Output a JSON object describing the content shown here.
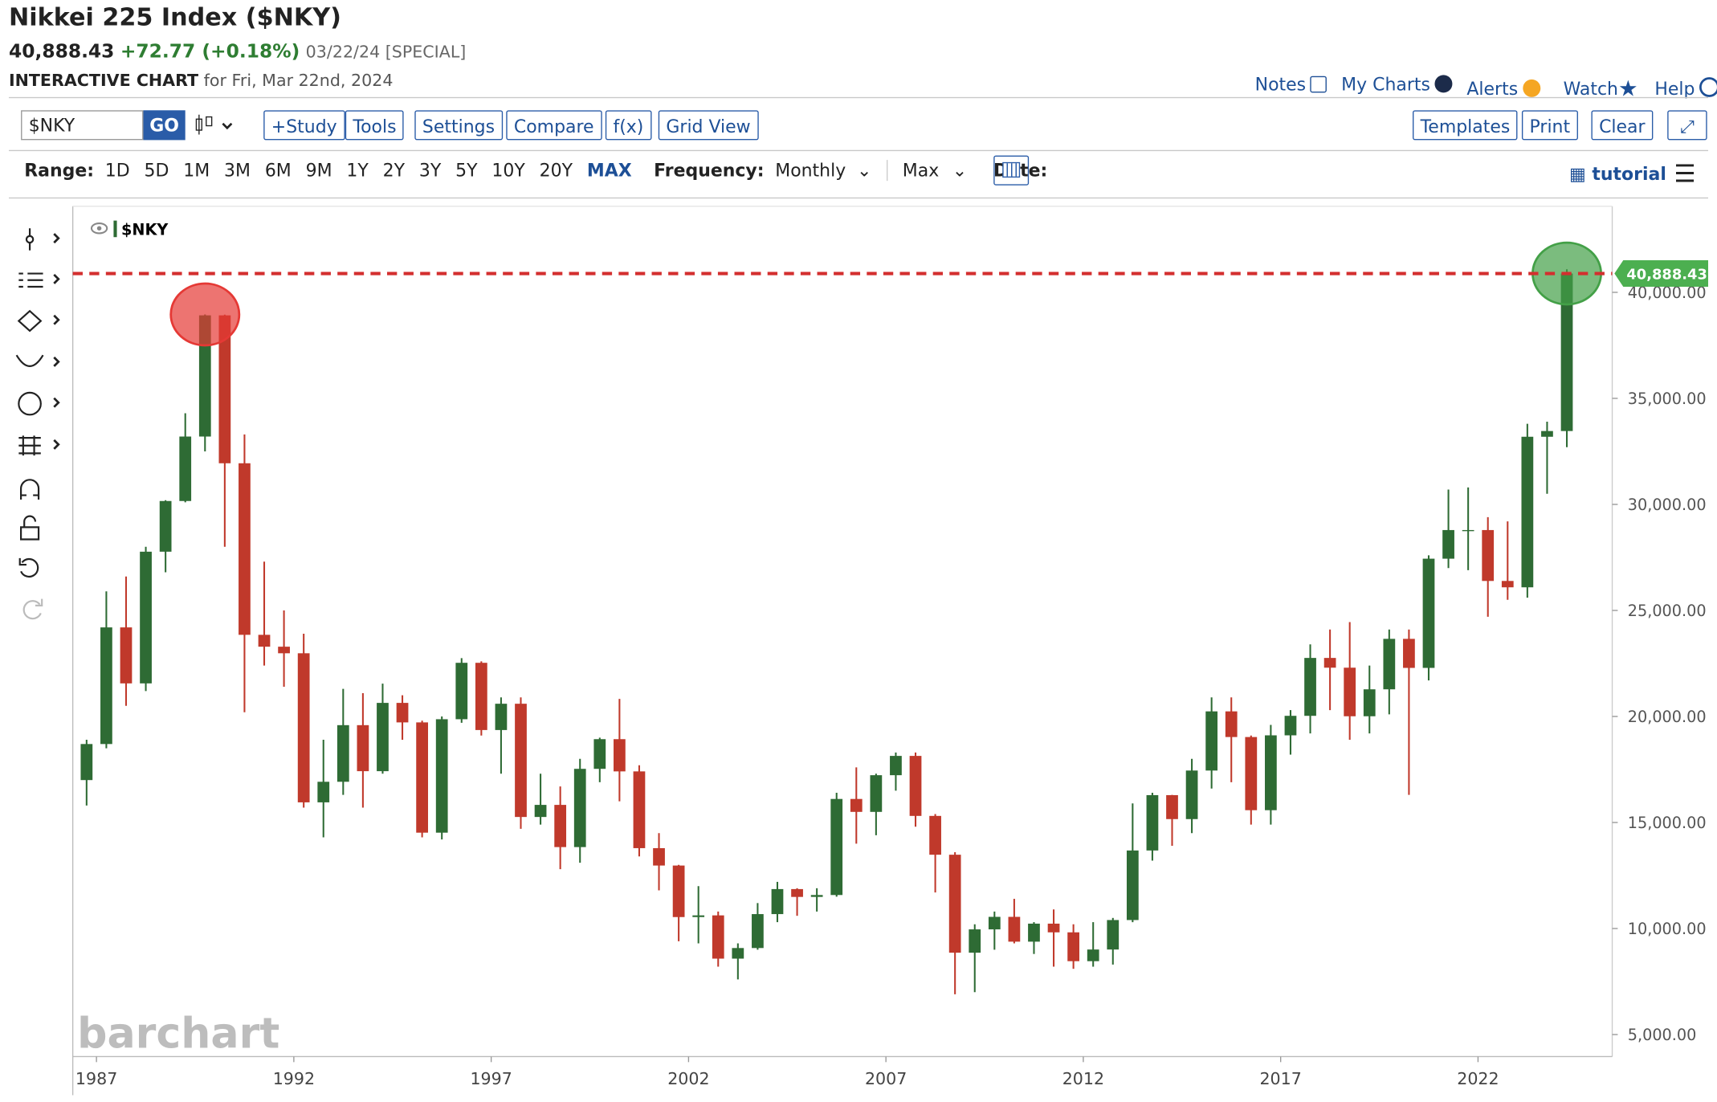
{
  "header": {
    "title": "Nikkei 225 Index ($NKY)",
    "last": "40,888.43",
    "change": "+72.77 (+0.18%)",
    "date_note": "03/22/24 [SPECIAL]",
    "chart_label": "INTERACTIVE CHART",
    "chart_date": "for Fri, Mar 22nd, 2024",
    "links": [
      "Notes",
      "My Charts",
      "Alerts",
      "Watch",
      "Help"
    ]
  },
  "toolbar": {
    "symbol": "$NKY",
    "go": "GO",
    "buttons_left": [
      "+Study",
      "Tools",
      "Settings",
      "Compare",
      "f(x)",
      "Grid View"
    ],
    "buttons_right": [
      "Templates",
      "Print",
      "Clear"
    ]
  },
  "range_bar": {
    "range_label": "Range:",
    "ranges": [
      "1D",
      "5D",
      "1M",
      "3M",
      "6M",
      "9M",
      "1Y",
      "2Y",
      "3Y",
      "5Y",
      "10Y",
      "20Y",
      "MAX"
    ],
    "active_range_index": 12,
    "frequency_label": "Frequency:",
    "frequency": "Monthly",
    "period": "Max",
    "date_label": "Date:",
    "tutorial": "tutorial"
  },
  "chart_data": {
    "type": "candlestick",
    "watermark": "barchart",
    "series": [
      {
        "name": "$NKY",
        "up_color": "#2e6b34",
        "down_color": "#c0392b",
        "x": [
          1986.75,
          1987.25,
          1987.75,
          1988.25,
          1988.75,
          1989.25,
          1989.75,
          1990.25,
          1990.75,
          1991.25,
          1991.75,
          1992.25,
          1992.75,
          1993.25,
          1993.75,
          1994.25,
          1994.75,
          1995.25,
          1995.75,
          1996.25,
          1996.75,
          1997.25,
          1997.75,
          1998.25,
          1998.75,
          1999.25,
          1999.75,
          2000.25,
          2000.75,
          2001.25,
          2001.75,
          2002.25,
          2002.75,
          2003.25,
          2003.75,
          2004.25,
          2004.75,
          2005.25,
          2005.75,
          2006.25,
          2006.75,
          2007.25,
          2007.75,
          2008.25,
          2008.75,
          2009.25,
          2009.75,
          2010.25,
          2010.75,
          2011.25,
          2011.75,
          2012.25,
          2012.75,
          2013.25,
          2013.75,
          2014.25,
          2014.75,
          2015.25,
          2015.75,
          2016.25,
          2016.75,
          2017.25,
          2017.75,
          2018.25,
          2018.75,
          2019.25,
          2019.75,
          2020.25,
          2020.75,
          2021.25,
          2021.75,
          2022.25,
          2022.75,
          2023.25,
          2023.75,
          2024.25
        ],
        "open": [
          17000,
          18700,
          24200,
          21560,
          27770,
          30160,
          33200,
          38915,
          31940,
          23850,
          23290,
          22980,
          15950,
          16920,
          19590,
          17420,
          20640,
          19720,
          14520,
          19870,
          22530,
          19360,
          20600,
          15260,
          15830,
          13840,
          17530,
          18930,
          17410,
          13790,
          12970,
          10540,
          10620,
          8580,
          9080,
          10680,
          11860,
          11490,
          11580,
          16110,
          15500,
          17230,
          18140,
          15310,
          13480,
          8860,
          9960,
          10550,
          9380,
          10230,
          9820,
          8460,
          9010,
          10400,
          13680,
          16290,
          15160,
          17450,
          20240,
          19030,
          15580,
          19110,
          20030,
          22760,
          22300,
          20010,
          21280,
          23660,
          22290,
          27440,
          28790,
          28790,
          26390,
          26090,
          33190,
          33460
        ],
        "high": [
          18900,
          25900,
          26600,
          28000,
          30200,
          34300,
          38957,
          38950,
          33300,
          27300,
          25000,
          23900,
          18900,
          21300,
          21100,
          21550,
          21000,
          19800,
          20000,
          22750,
          22600,
          20900,
          20900,
          17300,
          16700,
          18000,
          19000,
          20830,
          17700,
          14500,
          13000,
          12000,
          10800,
          9300,
          11200,
          12200,
          11900,
          11900,
          16400,
          17600,
          17300,
          18300,
          18300,
          15400,
          13600,
          10200,
          10800,
          11400,
          10300,
          10900,
          10200,
          10300,
          10500,
          15900,
          16400,
          16300,
          18000,
          20900,
          20900,
          19100,
          19600,
          20300,
          23400,
          24100,
          24450,
          22400,
          24100,
          24100,
          27600,
          30700,
          30800,
          29400,
          29200,
          33800,
          33900,
          41087
        ],
        "low": [
          15800,
          18500,
          20500,
          21200,
          26800,
          30100,
          32500,
          28000,
          20200,
          22400,
          21400,
          15700,
          14300,
          16300,
          15700,
          17300,
          18900,
          14300,
          14200,
          19700,
          19100,
          17300,
          14700,
          14900,
          12800,
          13100,
          16900,
          16000,
          13400,
          11800,
          9400,
          9300,
          8200,
          7600,
          9000,
          10300,
          10600,
          10800,
          11500,
          14000,
          14400,
          16500,
          14800,
          11700,
          6900,
          7000,
          9000,
          9300,
          8800,
          8200,
          8100,
          8200,
          8300,
          10300,
          13200,
          13900,
          14500,
          16600,
          16900,
          14900,
          14900,
          18200,
          19200,
          20300,
          18900,
          19200,
          20100,
          16300,
          21700,
          27000,
          26900,
          24700,
          25500,
          25600,
          30500,
          32700
        ],
        "close": [
          18700,
          24200,
          21560,
          27770,
          30160,
          33200,
          38915,
          31940,
          23850,
          23290,
          22980,
          15950,
          16920,
          19590,
          17420,
          20640,
          19720,
          14520,
          19870,
          22530,
          19360,
          20600,
          15260,
          15830,
          13840,
          17530,
          18930,
          17410,
          13790,
          12970,
          10540,
          10620,
          8580,
          9080,
          10680,
          11860,
          11490,
          11580,
          16110,
          15500,
          17230,
          18140,
          15310,
          13480,
          8860,
          9960,
          10550,
          9380,
          10230,
          9820,
          8460,
          9010,
          10400,
          13680,
          16290,
          15160,
          17450,
          20240,
          19030,
          15580,
          19110,
          20030,
          22760,
          22300,
          20010,
          21280,
          23660,
          22290,
          27440,
          28790,
          28790,
          26390,
          26090,
          33190,
          33460,
          40888.43
        ]
      }
    ],
    "last_price": {
      "value": 40888.43,
      "label": "40,888.43",
      "color": "#4caf50",
      "line_color": "#d32f2f"
    },
    "highlights": [
      {
        "index": 6,
        "field": "high",
        "color": "#e53935"
      },
      {
        "index": 75,
        "field": "close",
        "color": "#43a047"
      }
    ],
    "xlim": [
      1986.4,
      2025.4
    ],
    "xticks": [
      1987,
      1992,
      1997,
      2002,
      2007,
      2012,
      2017,
      2022
    ],
    "ylim": [
      3960,
      44060
    ],
    "yticks": [
      {
        "value": 5000,
        "label": "5,000.00"
      },
      {
        "value": 10000,
        "label": "10,000.00"
      },
      {
        "value": 15000,
        "label": "15,000.00"
      },
      {
        "value": 20000,
        "label": "20,000.00"
      },
      {
        "value": 25000,
        "label": "25,000.00"
      },
      {
        "value": 30000,
        "label": "30,000.00"
      },
      {
        "value": 35000,
        "label": "35,000.00"
      },
      {
        "value": 40000,
        "label": "40,000.00"
      }
    ],
    "grid": false
  }
}
